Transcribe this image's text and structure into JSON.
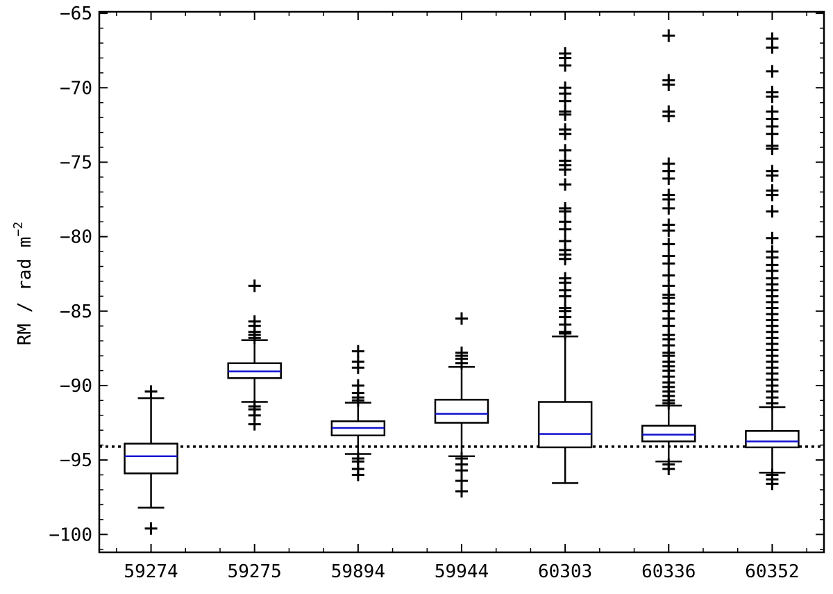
{
  "chart_data": {
    "type": "box",
    "ylabel": "RM / rad m",
    "ylabel_superscript": "−2",
    "ylim": [
      -101.2,
      -64.9
    ],
    "yticks": [
      -65,
      -70,
      -75,
      -80,
      -85,
      -90,
      -95,
      -100
    ],
    "ytick_labels": [
      "−65",
      "−70",
      "−75",
      "−80",
      "−85",
      "−90",
      "−95",
      "−100"
    ],
    "categories": [
      "59274",
      "59275",
      "59894",
      "59944",
      "60303",
      "60336",
      "60352"
    ],
    "reference_line": -94.1,
    "colors": {
      "box": "#000000",
      "median": "#1010d0",
      "reference": "#000000",
      "outlier": "#000000"
    },
    "boxes": [
      {
        "label": "59274",
        "whisker_high": -90.85,
        "q3": -93.9,
        "median": -94.75,
        "q1": -95.9,
        "whisker_low": -98.2,
        "outliers": [
          -90.4,
          -99.6
        ]
      },
      {
        "label": "59275",
        "whisker_high": -86.95,
        "q3": -88.5,
        "median": -89.05,
        "q1": -89.5,
        "whisker_low": -91.1,
        "outliers": [
          -83.3,
          -85.7,
          -86.0,
          -86.4,
          -86.6,
          -86.8,
          -91.4,
          -91.6,
          -92.0,
          -92.6
        ]
      },
      {
        "label": "59894",
        "whisker_high": -91.15,
        "q3": -92.4,
        "median": -92.85,
        "q1": -93.35,
        "whisker_low": -94.6,
        "outliers": [
          -87.7,
          -88.4,
          -88.8,
          -90.0,
          -90.5,
          -90.8,
          -91.0,
          -94.9,
          -95.1,
          -95.6,
          -96.0
        ]
      },
      {
        "label": "59944",
        "whisker_high": -88.75,
        "q3": -90.95,
        "median": -91.9,
        "q1": -92.5,
        "whisker_low": -94.75,
        "outliers": [
          -85.5,
          -87.8,
          -88.0,
          -88.2,
          -88.5,
          -94.9,
          -95.3,
          -95.7,
          -96.4,
          -97.1
        ]
      },
      {
        "label": "60303",
        "whisker_high": -86.7,
        "q3": -91.1,
        "median": -93.25,
        "q1": -94.15,
        "whisker_low": -96.55,
        "outliers": [
          -67.7,
          -68.0,
          -68.5,
          -70.0,
          -70.4,
          -70.9,
          -71.6,
          -71.8,
          -72.8,
          -73.1,
          -74.2,
          -74.9,
          -75.2,
          -75.5,
          -76.5,
          -78.1,
          -78.3,
          -79.0,
          -79.5,
          -80.3,
          -80.9,
          -81.2,
          -81.5,
          -82.8,
          -83.1,
          -83.6,
          -84.0,
          -84.8,
          -85.0,
          -85.4,
          -85.9,
          -86.4,
          -86.5
        ]
      },
      {
        "label": "60336",
        "whisker_high": -91.35,
        "q3": -92.7,
        "median": -93.3,
        "q1": -93.75,
        "whisker_low": -95.1,
        "outliers": [
          -66.5,
          -69.5,
          -69.8,
          -71.6,
          -71.9,
          -75.1,
          -75.6,
          -76.1,
          -77.2,
          -77.5,
          -78.1,
          -79.2,
          -79.6,
          -80.5,
          -81.3,
          -81.8,
          -82.6,
          -83.3,
          -83.9,
          -84.1,
          -84.5,
          -85.0,
          -85.5,
          -86.0,
          -86.6,
          -86.9,
          -87.3,
          -87.8,
          -88.0,
          -88.4,
          -88.7,
          -89.0,
          -89.4,
          -89.8,
          -90.1,
          -90.4,
          -90.7,
          -91.0,
          -91.2,
          -95.3,
          -95.6
        ]
      },
      {
        "label": "60352",
        "whisker_high": -91.45,
        "q3": -93.05,
        "median": -93.75,
        "q1": -94.15,
        "whisker_low": -95.85,
        "outliers": [
          -66.7,
          -67.3,
          -68.9,
          -70.3,
          -70.6,
          -71.6,
          -72.1,
          -72.6,
          -73.1,
          -73.9,
          -74.1,
          -75.6,
          -75.9,
          -76.9,
          -77.2,
          -78.3,
          -80.1,
          -81.0,
          -81.4,
          -81.9,
          -82.3,
          -82.8,
          -83.2,
          -83.6,
          -84.0,
          -84.4,
          -84.8,
          -85.2,
          -85.6,
          -86.0,
          -86.4,
          -86.8,
          -87.2,
          -87.6,
          -88.0,
          -88.4,
          -88.8,
          -89.2,
          -89.6,
          -90.0,
          -90.4,
          -90.8,
          -91.2,
          -96.0,
          -96.3,
          -96.6
        ]
      }
    ]
  }
}
